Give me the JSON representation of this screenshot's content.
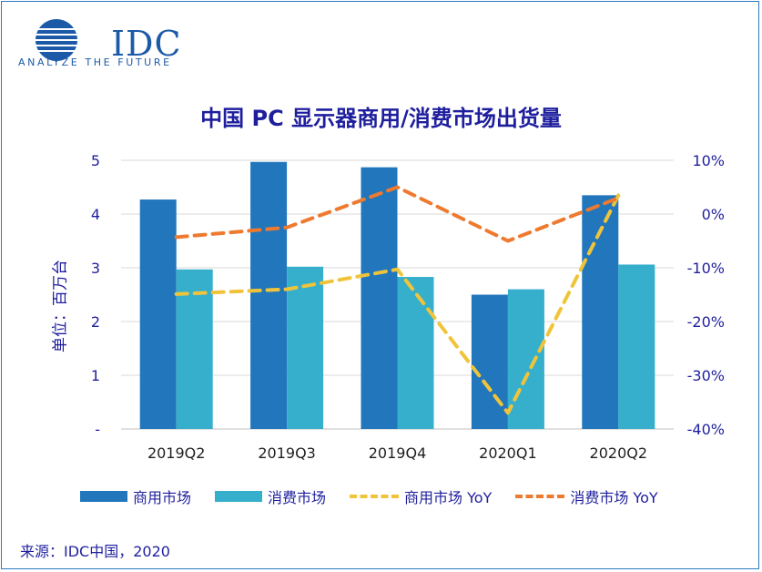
{
  "logo": {
    "name": "IDC",
    "tagline": "ANALYZE THE FUTURE"
  },
  "source": "来源：IDC中国，2020",
  "colors": {
    "commercial": "#2176bc",
    "consumer": "#36afcc",
    "commercial_yoy": "#f0c43a",
    "consumer_yoy": "#ee7a2f",
    "text": "#1f1f9e"
  },
  "chart_data": {
    "type": "bar",
    "title": "中国 PC 显示器商用/消费市场出货量",
    "ylabel": "单位：百万台",
    "categories": [
      "2019Q2",
      "2019Q3",
      "2019Q4",
      "2020Q1",
      "2020Q2"
    ],
    "ylim": [
      0,
      5
    ],
    "y_ticks": [
      "-",
      "1",
      "2",
      "3",
      "4",
      "5"
    ],
    "y2lim": [
      -40,
      10
    ],
    "y2_ticks": [
      "-40%",
      "-30%",
      "-20%",
      "-10%",
      "0%",
      "10%"
    ],
    "series": [
      {
        "name": "商用市场",
        "kind": "bar",
        "axis": "left",
        "values": [
          4.27,
          4.97,
          4.87,
          2.5,
          4.35
        ]
      },
      {
        "name": "消费市场",
        "kind": "bar",
        "axis": "left",
        "values": [
          2.97,
          3.02,
          2.83,
          2.6,
          3.06
        ]
      },
      {
        "name": "商用市场 YoY",
        "kind": "line",
        "axis": "right",
        "values": [
          -14.9,
          -14.0,
          -10.3,
          -37.0,
          3.5
        ]
      },
      {
        "name": "消费市场 YoY",
        "kind": "line",
        "axis": "right",
        "values": [
          -4.3,
          -2.5,
          5.0,
          -5.0,
          3.0
        ]
      }
    ]
  }
}
